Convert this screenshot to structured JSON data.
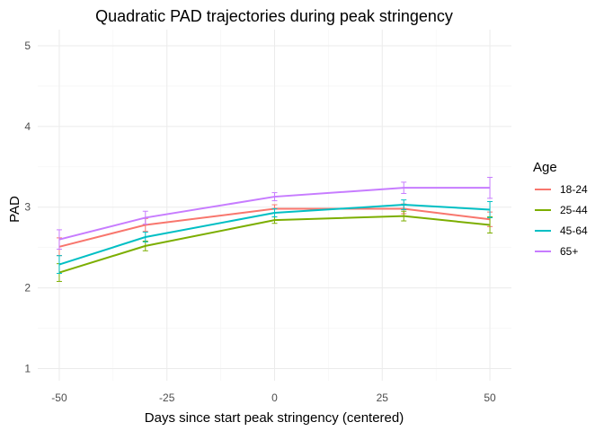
{
  "chart_data": {
    "type": "line",
    "title": "Quadratic PAD trajectories during peak stringency",
    "xlabel": "Days since start peak stringency (centered)",
    "ylabel": "PAD",
    "x": [
      -50,
      -30,
      0,
      30,
      50
    ],
    "xlim": [
      -55,
      55
    ],
    "ylim": [
      0.85,
      5.2
    ],
    "x_ticks": [
      -50,
      -25,
      0,
      25,
      50
    ],
    "x_tick_labels": [
      "-50",
      "-25",
      "0",
      "25",
      "50"
    ],
    "y_ticks": [
      1,
      2,
      3,
      4,
      5
    ],
    "y_tick_labels": [
      "1",
      "2",
      "3",
      "4",
      "5"
    ],
    "grid": true,
    "legend": {
      "title": "Age",
      "position": "right"
    },
    "series": [
      {
        "name": "18-24",
        "color": "#F8766D",
        "values": [
          2.51,
          2.78,
          2.98,
          2.98,
          2.85
        ],
        "lower": [
          2.4,
          2.7,
          2.93,
          2.92,
          2.76
        ],
        "upper": [
          2.62,
          2.86,
          3.03,
          3.04,
          2.94
        ]
      },
      {
        "name": "25-44",
        "color": "#7CAE00",
        "values": [
          2.19,
          2.52,
          2.84,
          2.89,
          2.78
        ],
        "lower": [
          2.08,
          2.46,
          2.8,
          2.83,
          2.68
        ],
        "upper": [
          2.3,
          2.58,
          2.88,
          2.95,
          2.88
        ]
      },
      {
        "name": "45-64",
        "color": "#00BFC4",
        "values": [
          2.29,
          2.63,
          2.93,
          3.03,
          2.97
        ],
        "lower": [
          2.18,
          2.57,
          2.88,
          2.97,
          2.87
        ],
        "upper": [
          2.4,
          2.69,
          2.98,
          3.09,
          3.07
        ]
      },
      {
        "name": "65+",
        "color": "#C77CFF",
        "values": [
          2.6,
          2.87,
          3.13,
          3.24,
          3.24
        ],
        "lower": [
          2.48,
          2.79,
          3.08,
          3.17,
          3.11
        ],
        "upper": [
          2.72,
          2.95,
          3.18,
          3.31,
          3.37
        ]
      }
    ]
  }
}
